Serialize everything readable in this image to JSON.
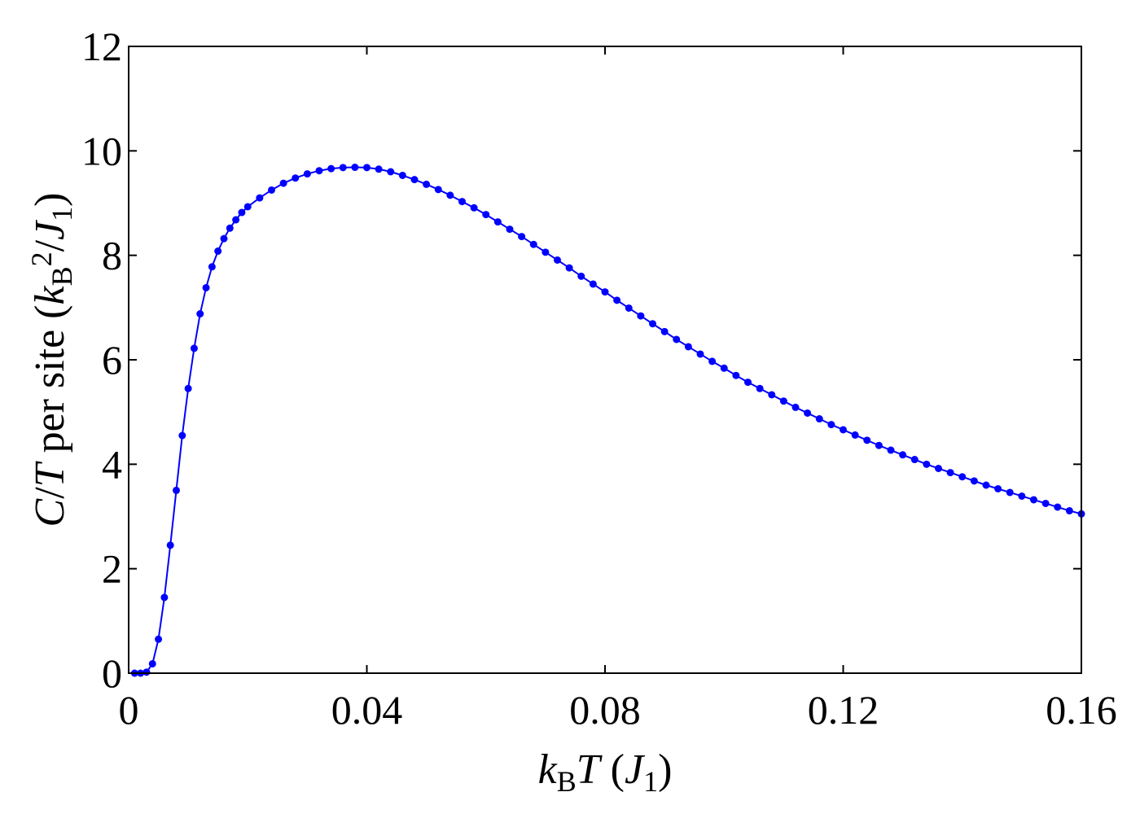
{
  "chart_data": {
    "type": "line",
    "title": "",
    "xlabel": {
      "parts": [
        {
          "text": "k",
          "style": "italic"
        },
        {
          "text": "B",
          "style": "sub"
        },
        {
          "text": "T",
          "style": "italic"
        },
        {
          "text": " (",
          "style": "normal"
        },
        {
          "text": "J",
          "style": "italic"
        },
        {
          "text": "1",
          "style": "sub"
        },
        {
          "text": ")",
          "style": "normal"
        }
      ]
    },
    "ylabel": {
      "parts": [
        {
          "text": "C",
          "style": "italic"
        },
        {
          "text": "/",
          "style": "normal"
        },
        {
          "text": "T",
          "style": "italic"
        },
        {
          "text": " per site (",
          "style": "normal"
        },
        {
          "text": "k",
          "style": "italic"
        },
        {
          "text": "B",
          "style": "sub"
        },
        {
          "text": "2",
          "style": "sup"
        },
        {
          "text": "/",
          "style": "normal"
        },
        {
          "text": "J",
          "style": "italic"
        },
        {
          "text": "1",
          "style": "sub"
        },
        {
          "text": ")",
          "style": "normal"
        }
      ]
    },
    "xlim": [
      0,
      0.16
    ],
    "ylim": [
      0,
      12
    ],
    "xticks": [
      0,
      0.04,
      0.08,
      0.12,
      0.16
    ],
    "xtick_labels": [
      "0",
      "0.04",
      "0.08",
      "0.12",
      "0.16"
    ],
    "yticks": [
      0,
      2,
      4,
      6,
      8,
      10,
      12
    ],
    "ytick_labels": [
      "0",
      "2",
      "4",
      "6",
      "8",
      "10",
      "12"
    ],
    "grid": false,
    "legend": "none",
    "series": [
      {
        "color": "#0000ff",
        "marker": "circle",
        "x": [
          0.001,
          0.002,
          0.003,
          0.004,
          0.005,
          0.006,
          0.007,
          0.008,
          0.009,
          0.01,
          0.011,
          0.012,
          0.013,
          0.014,
          0.015,
          0.016,
          0.017,
          0.018,
          0.019,
          0.02,
          0.022,
          0.024,
          0.026,
          0.028,
          0.03,
          0.032,
          0.034,
          0.036,
          0.038,
          0.04,
          0.042,
          0.044,
          0.046,
          0.048,
          0.05,
          0.052,
          0.054,
          0.056,
          0.058,
          0.06,
          0.062,
          0.064,
          0.066,
          0.068,
          0.07,
          0.072,
          0.074,
          0.076,
          0.078,
          0.08,
          0.082,
          0.084,
          0.086,
          0.088,
          0.09,
          0.092,
          0.094,
          0.096,
          0.098,
          0.1,
          0.102,
          0.104,
          0.106,
          0.108,
          0.11,
          0.112,
          0.114,
          0.116,
          0.118,
          0.12,
          0.122,
          0.124,
          0.126,
          0.128,
          0.13,
          0.132,
          0.134,
          0.136,
          0.138,
          0.14,
          0.142,
          0.144,
          0.146,
          0.148,
          0.15,
          0.152,
          0.154,
          0.156,
          0.158,
          0.16
        ],
        "y": [
          0.0,
          0.0,
          0.02,
          0.18,
          0.65,
          1.45,
          2.45,
          3.5,
          4.55,
          5.45,
          6.22,
          6.88,
          7.38,
          7.78,
          8.08,
          8.32,
          8.52,
          8.68,
          8.82,
          8.93,
          9.1,
          9.25,
          9.38,
          9.48,
          9.56,
          9.62,
          9.66,
          9.68,
          9.685,
          9.68,
          9.65,
          9.6,
          9.53,
          9.45,
          9.36,
          9.26,
          9.15,
          9.03,
          8.91,
          8.78,
          8.64,
          8.5,
          8.36,
          8.21,
          8.06,
          7.91,
          7.76,
          7.6,
          7.45,
          7.3,
          7.14,
          6.99,
          6.84,
          6.69,
          6.54,
          6.39,
          6.25,
          6.11,
          5.97,
          5.84,
          5.7,
          5.57,
          5.45,
          5.33,
          5.21,
          5.09,
          4.98,
          4.87,
          4.76,
          4.66,
          4.56,
          4.46,
          4.36,
          4.27,
          4.18,
          4.09,
          4.0,
          3.92,
          3.84,
          3.76,
          3.68,
          3.6,
          3.53,
          3.46,
          3.39,
          3.32,
          3.25,
          3.18,
          3.11,
          3.05
        ]
      }
    ]
  }
}
